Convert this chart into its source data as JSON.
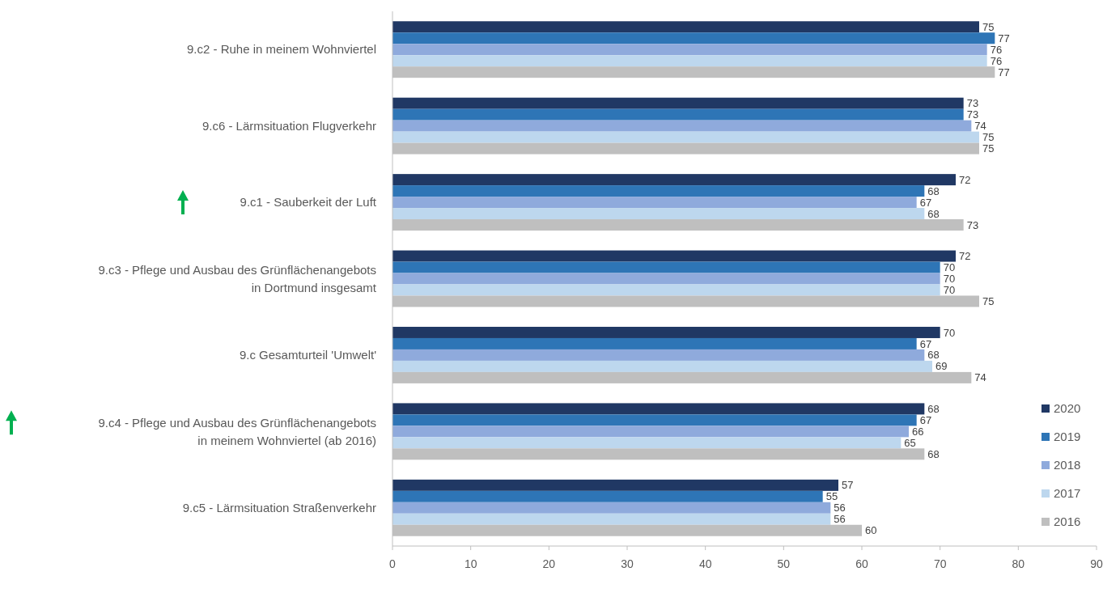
{
  "chart_data": {
    "type": "bar",
    "orientation": "horizontal",
    "categories": [
      "9.c2 - Ruhe in meinem Wohnviertel",
      "9.c6 - Lärmsituation Flugverkehr",
      "9.c1 - Sauberkeit der Luft",
      "9.c3 - Pflege und Ausbau des Grünflächenangebots\nin Dortmund insgesamt",
      "9.c Gesamturteil 'Umwelt'",
      "9.c4 - Pflege und Ausbau des Grünflächenangebots\nin meinem Wohnviertel (ab 2016)",
      "9.c5 - Lärmsituation Straßenverkehr"
    ],
    "series": [
      {
        "name": "2020",
        "color": "#203864",
        "values": [
          75,
          73,
          72,
          72,
          70,
          68,
          57
        ]
      },
      {
        "name": "2019",
        "color": "#2e75b6",
        "values": [
          77,
          73,
          68,
          70,
          67,
          67,
          55
        ]
      },
      {
        "name": "2018",
        "color": "#8faadc",
        "values": [
          76,
          74,
          67,
          70,
          68,
          66,
          56
        ]
      },
      {
        "name": "2017",
        "color": "#bdd7ee",
        "values": [
          76,
          75,
          68,
          70,
          69,
          65,
          56
        ]
      },
      {
        "name": "2016",
        "color": "#bfbfbf",
        "values": [
          77,
          75,
          73,
          75,
          74,
          68,
          60
        ]
      }
    ],
    "xlim": [
      0,
      90
    ],
    "xticks": [
      0,
      10,
      20,
      30,
      40,
      50,
      60,
      70,
      80,
      90
    ],
    "data_labels": true,
    "legend": "right",
    "grid": false
  }
}
